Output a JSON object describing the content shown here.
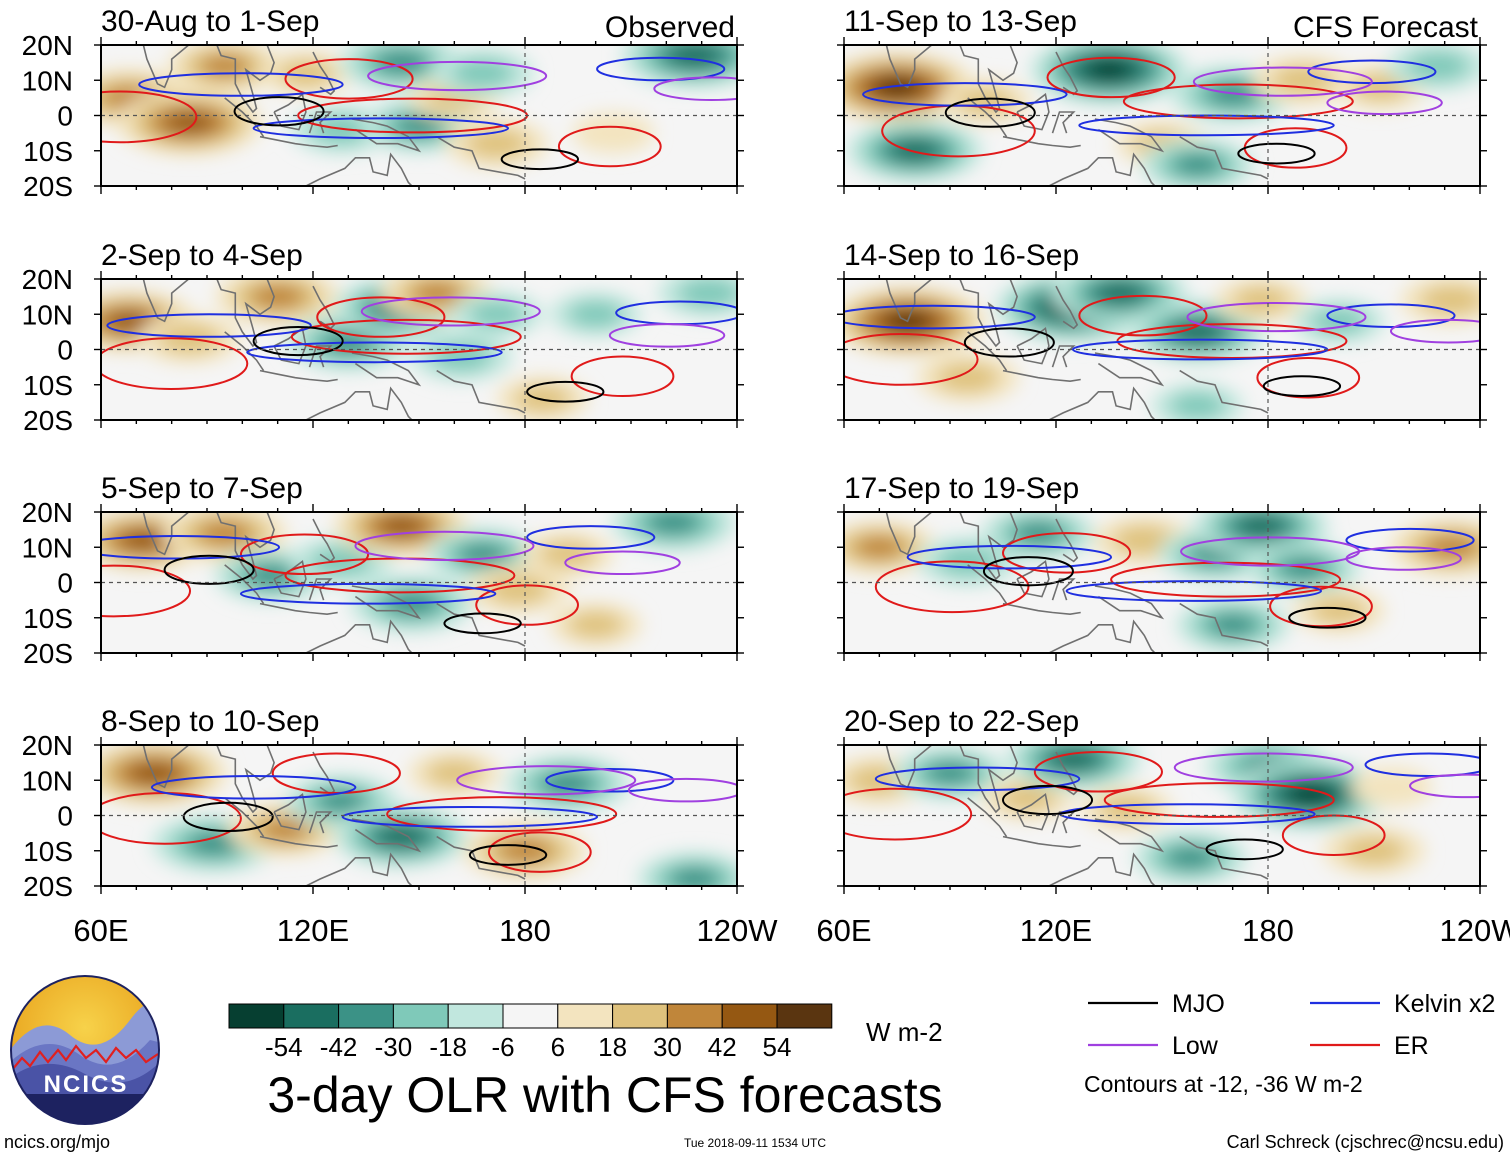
{
  "chart_data": {
    "type": "heatmap",
    "title": "3-day OLR with CFS forecasts",
    "variable": "OLR anomaly",
    "units": "W m-2",
    "contour_note": "Contours at -12, -36 W m-2",
    "observed_label": "Observed",
    "forecast_label": "CFS Forecast",
    "x_ticks": [
      "60E",
      "120E",
      "180",
      "120W"
    ],
    "x_tick_deg": [
      60,
      120,
      180,
      240
    ],
    "x_range_deg": [
      60,
      240
    ],
    "y_ticks": [
      "20N",
      "10N",
      "0",
      "10S",
      "20S"
    ],
    "y_tick_deg": [
      20,
      10,
      0,
      -10,
      -20
    ],
    "y_range_deg": [
      -20,
      20
    ],
    "colorbar": {
      "colors": [
        "#063f31",
        "#1a6e60",
        "#3b9286",
        "#7fc9b9",
        "#c1e7de",
        "#f5f5f5",
        "#f3e4bf",
        "#dfc27d",
        "#c0863a",
        "#955812",
        "#5a3510"
      ],
      "tick_labels": [
        "-54",
        "-42",
        "-30",
        "-18",
        "-6",
        "6",
        "18",
        "30",
        "42",
        "54"
      ]
    },
    "legend": [
      {
        "label": "MJO",
        "color": "#000000"
      },
      {
        "label": "Kelvin x2",
        "color": "#1f2fe0"
      },
      {
        "label": "Low",
        "color": "#a040e0"
      },
      {
        "label": "ER",
        "color": "#e01a1a"
      }
    ],
    "panels": [
      {
        "label": "30-Aug to 1-Sep",
        "kind": "Observed",
        "anomalies": [
          {
            "lon": 68,
            "lat": 5,
            "v": 36
          },
          {
            "lon": 85,
            "lat": -2,
            "v": 48
          },
          {
            "lon": 95,
            "lat": 14,
            "v": 30
          },
          {
            "lon": 118,
            "lat": 12,
            "v": 18
          },
          {
            "lon": 128,
            "lat": -4,
            "v": -24
          },
          {
            "lon": 145,
            "lat": 15,
            "v": -36
          },
          {
            "lon": 150,
            "lat": -3,
            "v": -30
          },
          {
            "lon": 160,
            "lat": 5,
            "v": 18
          },
          {
            "lon": 168,
            "lat": 12,
            "v": -24
          },
          {
            "lon": 172,
            "lat": -8,
            "v": 24
          },
          {
            "lon": 205,
            "lat": -5,
            "v": 12
          },
          {
            "lon": 228,
            "lat": 17,
            "v": -48
          }
        ]
      },
      {
        "label": "2-Sep to 4-Sep",
        "kind": "Observed",
        "anomalies": [
          {
            "lon": 68,
            "lat": 8,
            "v": 42
          },
          {
            "lon": 85,
            "lat": 3,
            "v": 24
          },
          {
            "lon": 110,
            "lat": 15,
            "v": 36
          },
          {
            "lon": 130,
            "lat": 2,
            "v": -36
          },
          {
            "lon": 145,
            "lat": 12,
            "v": -42
          },
          {
            "lon": 155,
            "lat": 16,
            "v": 30
          },
          {
            "lon": 162,
            "lat": -2,
            "v": -24
          },
          {
            "lon": 172,
            "lat": 10,
            "v": -18
          },
          {
            "lon": 185,
            "lat": -14,
            "v": 18
          },
          {
            "lon": 200,
            "lat": 10,
            "v": -18
          },
          {
            "lon": 232,
            "lat": 16,
            "v": -24
          }
        ]
      },
      {
        "label": "5-Sep to 7-Sep",
        "kind": "Observed",
        "anomalies": [
          {
            "lon": 72,
            "lat": 12,
            "v": 42
          },
          {
            "lon": 95,
            "lat": 14,
            "v": 36
          },
          {
            "lon": 108,
            "lat": 2,
            "v": -30
          },
          {
            "lon": 128,
            "lat": 6,
            "v": -24
          },
          {
            "lon": 145,
            "lat": 16,
            "v": 42
          },
          {
            "lon": 148,
            "lat": -6,
            "v": -36
          },
          {
            "lon": 168,
            "lat": 8,
            "v": -30
          },
          {
            "lon": 178,
            "lat": -2,
            "v": 24
          },
          {
            "lon": 192,
            "lat": 8,
            "v": 18
          },
          {
            "lon": 200,
            "lat": -12,
            "v": 18
          },
          {
            "lon": 222,
            "lat": 17,
            "v": -36
          }
        ]
      },
      {
        "label": "8-Sep to 10-Sep",
        "kind": "Observed",
        "anomalies": [
          {
            "lon": 75,
            "lat": 12,
            "v": 48
          },
          {
            "lon": 92,
            "lat": -8,
            "v": -36
          },
          {
            "lon": 112,
            "lat": -4,
            "v": 30
          },
          {
            "lon": 128,
            "lat": 4,
            "v": -30
          },
          {
            "lon": 145,
            "lat": -6,
            "v": -42
          },
          {
            "lon": 160,
            "lat": 12,
            "v": 18
          },
          {
            "lon": 180,
            "lat": -10,
            "v": 36
          },
          {
            "lon": 192,
            "lat": 9,
            "v": -36
          },
          {
            "lon": 228,
            "lat": -18,
            "v": -30
          }
        ]
      },
      {
        "label": "11-Sep to 13-Sep",
        "kind": "CFS Forecast",
        "anomalies": [
          {
            "lon": 75,
            "lat": 8,
            "v": 54
          },
          {
            "lon": 80,
            "lat": -10,
            "v": -42
          },
          {
            "lon": 100,
            "lat": 4,
            "v": 18
          },
          {
            "lon": 135,
            "lat": 13,
            "v": -54
          },
          {
            "lon": 150,
            "lat": -8,
            "v": 18
          },
          {
            "lon": 160,
            "lat": -14,
            "v": -30
          },
          {
            "lon": 170,
            "lat": 6,
            "v": -36
          },
          {
            "lon": 190,
            "lat": 10,
            "v": 24
          },
          {
            "lon": 212,
            "lat": 8,
            "v": 18
          },
          {
            "lon": 228,
            "lat": 14,
            "v": -24
          }
        ]
      },
      {
        "label": "14-Sep to 16-Sep",
        "kind": "CFS Forecast",
        "anomalies": [
          {
            "lon": 78,
            "lat": 8,
            "v": 54
          },
          {
            "lon": 95,
            "lat": -8,
            "v": 24
          },
          {
            "lon": 125,
            "lat": 12,
            "v": -54
          },
          {
            "lon": 138,
            "lat": 16,
            "v": -42
          },
          {
            "lon": 160,
            "lat": 5,
            "v": -42
          },
          {
            "lon": 178,
            "lat": 14,
            "v": 18
          },
          {
            "lon": 200,
            "lat": 8,
            "v": -18
          },
          {
            "lon": 160,
            "lat": -16,
            "v": -18
          },
          {
            "lon": 232,
            "lat": 14,
            "v": 24
          }
        ]
      },
      {
        "label": "17-Sep to 19-Sep",
        "kind": "CFS Forecast",
        "anomalies": [
          {
            "lon": 70,
            "lat": 10,
            "v": 30
          },
          {
            "lon": 95,
            "lat": 6,
            "v": -24
          },
          {
            "lon": 115,
            "lat": 14,
            "v": -30
          },
          {
            "lon": 145,
            "lat": 12,
            "v": 24
          },
          {
            "lon": 165,
            "lat": 8,
            "v": -30
          },
          {
            "lon": 178,
            "lat": 16,
            "v": -42
          },
          {
            "lon": 190,
            "lat": 4,
            "v": -30
          },
          {
            "lon": 170,
            "lat": -12,
            "v": -30
          },
          {
            "lon": 200,
            "lat": -8,
            "v": 18
          },
          {
            "lon": 232,
            "lat": 10,
            "v": 36
          }
        ]
      },
      {
        "label": "20-Sep to 22-Sep",
        "kind": "CFS Forecast",
        "anomalies": [
          {
            "lon": 70,
            "lat": 10,
            "v": 24
          },
          {
            "lon": 90,
            "lat": 12,
            "v": -30
          },
          {
            "lon": 112,
            "lat": 5,
            "v": 18
          },
          {
            "lon": 125,
            "lat": 16,
            "v": -42
          },
          {
            "lon": 140,
            "lat": 2,
            "v": 18
          },
          {
            "lon": 158,
            "lat": -12,
            "v": -30
          },
          {
            "lon": 180,
            "lat": 14,
            "v": -36
          },
          {
            "lon": 192,
            "lat": 6,
            "v": -54
          },
          {
            "lon": 215,
            "lat": 8,
            "v": 12
          },
          {
            "lon": 210,
            "lat": -10,
            "v": 24
          }
        ]
      }
    ]
  },
  "footer": {
    "site": "ncics.org/mjo",
    "timestamp": "Tue 2018-09-11 1534 UTC",
    "author": "Carl Schreck (cjschrec@ncsu.edu)",
    "logo_text": "NCICS"
  }
}
